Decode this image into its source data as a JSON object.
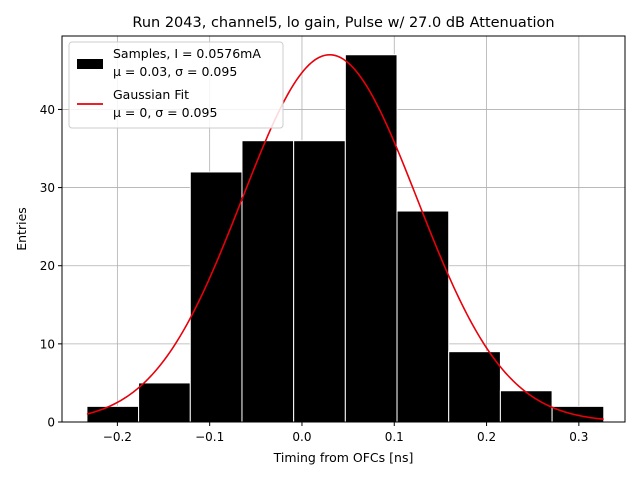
{
  "chart_data": {
    "type": "bar",
    "title": "Run 2043, channel5, lo gain, Pulse w/ 27.0 dB Attenuation",
    "xlabel": "Timing from OFCs [ns]",
    "ylabel": "Entries",
    "xlim": [
      -0.26,
      0.35
    ],
    "ylim": [
      0,
      49.4
    ],
    "x_ticks": [
      -0.2,
      -0.1,
      0.0,
      0.1,
      0.2,
      0.3
    ],
    "x_tick_labels": [
      "−0.2",
      "−0.1",
      "0.0",
      "0.1",
      "0.2",
      "0.3"
    ],
    "y_ticks": [
      0,
      10,
      20,
      30,
      40
    ],
    "y_tick_labels": [
      "0",
      "10",
      "20",
      "30",
      "40"
    ],
    "grid": true,
    "legend_position": "top-left",
    "histogram": {
      "name": "Samples, I = 0.0576mA",
      "stats_label": "μ = 0.03, σ = 0.095",
      "color": "#000000",
      "edge_color": "#ffffff",
      "bin_edges": [
        -0.233,
        -0.177,
        -0.121,
        -0.065,
        -0.009,
        0.047,
        0.103,
        0.159,
        0.215,
        0.271,
        0.327
      ],
      "counts": [
        2,
        5,
        32,
        36,
        36,
        47,
        27,
        9,
        4,
        2
      ]
    },
    "fit": {
      "name": "Gaussian Fit",
      "stats_label": "μ = 0, σ = 0.095",
      "color": "#e8000b",
      "mu": 0.03,
      "sigma": 0.095,
      "amplitude": 47.0,
      "x_range": [
        -0.233,
        0.327
      ]
    }
  }
}
